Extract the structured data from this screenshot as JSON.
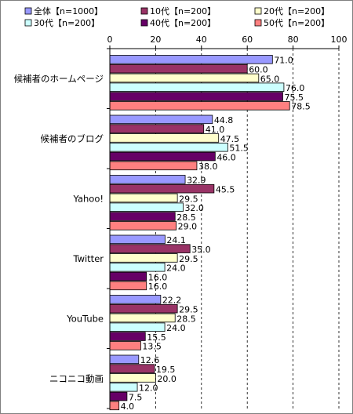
{
  "chart_data": {
    "type": "bar",
    "orientation": "horizontal",
    "categories": [
      "候補者のホームページ",
      "候補者のブログ",
      "Yahoo!",
      "Twitter",
      "YouTube",
      "ニコニコ動画"
    ],
    "series": [
      {
        "name": "全体【n=1000】",
        "color": "#9999ff",
        "values": [
          71.0,
          44.8,
          32.9,
          24.1,
          22.2,
          12.6
        ]
      },
      {
        "name": "10代【n=200】",
        "color": "#993366",
        "values": [
          60.0,
          41.0,
          45.5,
          35.0,
          29.5,
          19.5
        ]
      },
      {
        "name": "20代【n=200】",
        "color": "#ffffcc",
        "values": [
          65.0,
          47.5,
          29.5,
          29.5,
          28.5,
          20.0
        ]
      },
      {
        "name": "30代【n=200】",
        "color": "#ccffff",
        "values": [
          76.0,
          51.5,
          32.0,
          24.0,
          24.0,
          12.0
        ]
      },
      {
        "name": "40代【n=200】",
        "color": "#660066",
        "values": [
          75.5,
          46.0,
          28.5,
          16.0,
          15.5,
          7.5
        ]
      },
      {
        "name": "50代【n=200】",
        "color": "#ff8080",
        "values": [
          78.5,
          38.0,
          29.0,
          16.0,
          13.5,
          4.0
        ]
      }
    ],
    "value_labels": [
      [
        "71.0",
        "44.8",
        "32.9",
        "24.1",
        "22.2",
        "12.6"
      ],
      [
        "60.0",
        "41.0",
        "45.5",
        "35.0",
        "29.5",
        "19.5"
      ],
      [
        "65.0",
        "47.5",
        "29.5",
        "29.5",
        "28.5",
        "20.0"
      ],
      [
        "76.0",
        "51.5",
        "32.0",
        "24.0",
        "24.0",
        "12.0"
      ],
      [
        "75.5",
        "46.0",
        "28.5",
        "16.0",
        "15.5",
        "7.5"
      ],
      [
        "78.5",
        "38.0",
        "29.0",
        "16.0",
        "13.5",
        "4.0"
      ]
    ],
    "xlim": [
      0,
      100
    ],
    "xticks": [
      "0",
      "20",
      "40",
      "60",
      "80",
      "100"
    ],
    "grid": "vertical dashed",
    "legend_position": "top"
  }
}
